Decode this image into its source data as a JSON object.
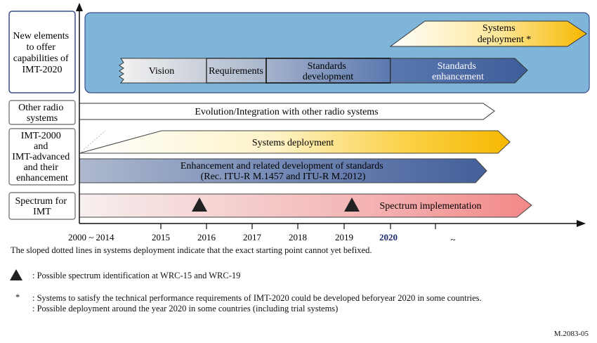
{
  "rows": [
    {
      "label": [
        "New elements",
        "to offer",
        "capabilities of",
        "IMT-2020"
      ]
    },
    {
      "label": [
        "Other radio",
        "systems"
      ]
    },
    {
      "label": [
        "IMT-2000",
        "and",
        "IMT-advanced",
        "and their",
        "enhancement"
      ]
    },
    {
      "label": [
        "Spectrum for",
        "IMT"
      ]
    }
  ],
  "imt2020": {
    "deployment": [
      "Systems",
      "deployment *"
    ],
    "vision": "Vision",
    "requirements": "Requirements",
    "standards_development": [
      "Standards",
      "development"
    ],
    "standards_enhancement": [
      "Standards",
      "enhancement"
    ]
  },
  "other_radio": {
    "arrow": "Evolution/Integration with other radio systems"
  },
  "imt_adv": {
    "deployment": "Systems deployment",
    "enhancement": [
      "Enhancement and related development of standards",
      "(Rec. ITU-R M.1457 and ITU-R M.2012)"
    ]
  },
  "spectrum": {
    "arrow": "Spectrum implementation"
  },
  "axis": {
    "ticks": [
      "2000 ~ 2014",
      "2015",
      "2016",
      "2017",
      "2018",
      "2019",
      "2020",
      "~"
    ],
    "highlight": "2020",
    "highlight_color": "#1f2a6e"
  },
  "notes": {
    "sloped": "The sloped dotted lines in systems deployment indicate that the exact starting point cannot yet befixed.",
    "triangle": ": Possible spectrum identification at WRC-15 and WRC-19",
    "star_symbol": "*",
    "star_1": ": Systems to satisfy the technical performance requirements of IMT-2020 could be developed beforyear 2020 in some countries.",
    "star_2": ": Possible deployment around the year 2020 in some countries (including trial systems)"
  },
  "figure_id": "M.2083-05",
  "colors": {
    "imt2020_panel": "#7fb5d9",
    "border": "#3a4e8a",
    "standards_blue": "#4a68a4",
    "deployment_yellow": "#f8c108",
    "spectrum_red": "#f29090"
  }
}
